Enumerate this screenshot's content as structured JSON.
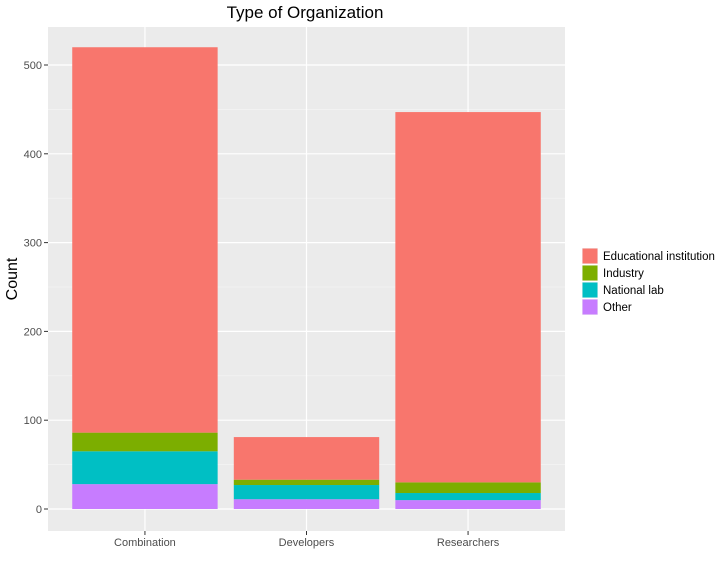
{
  "chart_data": {
    "type": "bar",
    "stacked": true,
    "title": "Type of Organization",
    "xlabel": "",
    "ylabel": "Count",
    "ylim": [
      0,
      540
    ],
    "yticks": [
      "0",
      "100",
      "200",
      "300",
      "400",
      "500"
    ],
    "ytick_values": [
      0,
      100,
      200,
      300,
      400,
      500
    ],
    "categories": [
      "Combination",
      "Developers",
      "Researchers"
    ],
    "series": [
      {
        "name": "Other",
        "color": "#c77cff",
        "values": [
          28,
          11,
          10
        ]
      },
      {
        "name": "National lab",
        "color": "#00bfc4",
        "values": [
          37,
          16,
          8
        ]
      },
      {
        "name": "Industry",
        "color": "#7cae00",
        "values": [
          21,
          6,
          12
        ]
      },
      {
        "name": "Educational institution",
        "color": "#f8766d",
        "values": [
          434,
          48,
          417
        ]
      }
    ],
    "legend_order": [
      "Educational institution",
      "Industry",
      "National lab",
      "Other"
    ],
    "legend_position": "right",
    "grid": true,
    "panel_color": "#ebebeb"
  }
}
